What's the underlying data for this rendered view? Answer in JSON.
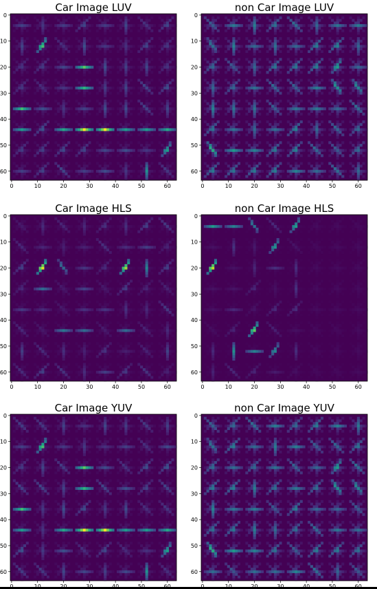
{
  "figure": {
    "colormap": "viridis",
    "panels": [
      {
        "title": "Car Image LUV"
      },
      {
        "title": "non Car Image LUV"
      },
      {
        "title": "Car Image HLS"
      },
      {
        "title": "non Car Image HLS"
      },
      {
        "title": "Car Image YUV"
      },
      {
        "title": "non Car Image YUV"
      }
    ]
  },
  "chart_data": [
    {
      "type": "heatmap",
      "title": "Car Image LUV",
      "xlim": [
        0,
        63
      ],
      "ylim": [
        63,
        0
      ],
      "xticks": [
        0,
        10,
        20,
        30,
        40,
        50,
        60
      ],
      "yticks": [
        0,
        10,
        20,
        30,
        40,
        50,
        60
      ],
      "colormap": "viridis",
      "grid": false
    },
    {
      "type": "heatmap",
      "title": "non Car Image LUV",
      "xlim": [
        0,
        63
      ],
      "ylim": [
        63,
        0
      ],
      "xticks": [
        0,
        10,
        20,
        30,
        40,
        50,
        60
      ],
      "yticks": [
        0,
        10,
        20,
        30,
        40,
        50,
        60
      ],
      "colormap": "viridis",
      "grid": false
    },
    {
      "type": "heatmap",
      "title": "Car Image HLS",
      "xlim": [
        0,
        63
      ],
      "ylim": [
        63,
        0
      ],
      "xticks": [
        0,
        10,
        20,
        30,
        40,
        50,
        60
      ],
      "yticks": [
        0,
        10,
        20,
        30,
        40,
        50,
        60
      ],
      "colormap": "viridis",
      "grid": false
    },
    {
      "type": "heatmap",
      "title": "non Car Image HLS",
      "xlim": [
        0,
        63
      ],
      "ylim": [
        63,
        0
      ],
      "xticks": [
        0,
        10,
        20,
        30,
        40,
        50,
        60
      ],
      "yticks": [
        0,
        10,
        20,
        30,
        40,
        50,
        60
      ],
      "colormap": "viridis",
      "grid": false
    },
    {
      "type": "heatmap",
      "title": "Car Image YUV",
      "xlim": [
        0,
        63
      ],
      "ylim": [
        63,
        0
      ],
      "xticks": [
        0,
        10,
        20,
        30,
        40,
        50,
        60
      ],
      "yticks": [
        0,
        10,
        20,
        30,
        40,
        50,
        60
      ],
      "colormap": "viridis",
      "grid": false
    },
    {
      "type": "heatmap",
      "title": "non Car Image YUV",
      "xlim": [
        0,
        63
      ],
      "ylim": [
        63,
        0
      ],
      "xticks": [
        0,
        10,
        20,
        30,
        40,
        50,
        60
      ],
      "yticks": [
        0,
        10,
        20,
        30,
        40,
        50,
        60
      ],
      "colormap": "viridis",
      "grid": false
    }
  ]
}
